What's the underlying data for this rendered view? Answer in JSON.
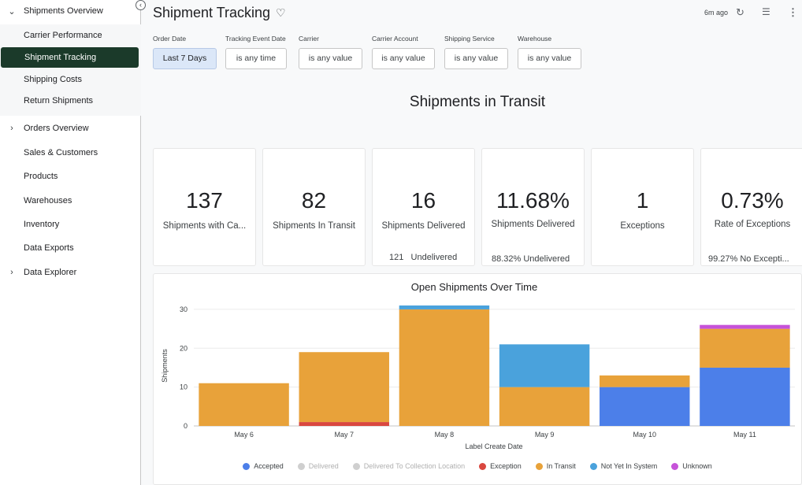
{
  "sidebar": {
    "sections": [
      {
        "label": "Shipments Overview",
        "expanded": true
      },
      {
        "label": "Orders Overview",
        "expanded": false
      },
      {
        "label": "Data Explorer",
        "expanded": false
      }
    ],
    "sub_items": [
      "Carrier Performance",
      "Shipment Tracking",
      "Shipping Costs",
      "Return Shipments"
    ],
    "items": [
      "Sales & Customers",
      "Products",
      "Warehouses",
      "Inventory",
      "Data Exports"
    ],
    "active": "Shipment Tracking"
  },
  "header": {
    "title": "Shipment Tracking",
    "last_updated": "6m ago"
  },
  "filters": [
    {
      "label": "Order Date",
      "value": "Last 7 Days",
      "selected": true
    },
    {
      "label": "Tracking Event Date",
      "value": "is any time",
      "selected": false
    },
    {
      "label": "Carrier",
      "value": "is any value",
      "selected": false
    },
    {
      "label": "Carrier Account",
      "value": "is any value",
      "selected": false
    },
    {
      "label": "Shipping Service",
      "value": "is any value",
      "selected": false
    },
    {
      "label": "Warehouse",
      "value": "is any value",
      "selected": false
    }
  ],
  "section_title": "Shipments in Transit",
  "kpis": [
    {
      "value": "137",
      "label": "Shipments with Ca...",
      "sub": ""
    },
    {
      "value": "82",
      "label": "Shipments In Transit",
      "sub": ""
    },
    {
      "value": "16",
      "label": "Shipments Delivered",
      "sub": "121   Undelivered"
    },
    {
      "value": "11.68%",
      "label": "Shipments Delivered",
      "sub": "88.32% Undelivered"
    },
    {
      "value": "1",
      "label": "Exceptions",
      "sub": ""
    },
    {
      "value": "0.73%",
      "label": "Rate of Exceptions",
      "sub": "99.27% No Excepti..."
    }
  ],
  "chart_data": {
    "type": "bar",
    "stacked": true,
    "title": "Open Shipments Over Time",
    "xlabel": "Label Create Date",
    "ylabel": "Shipments",
    "ylim": [
      0,
      31
    ],
    "yticks": [
      0,
      10,
      20,
      30
    ],
    "categories": [
      "May 6",
      "May 7",
      "May 8",
      "May 9",
      "May 10",
      "May 11"
    ],
    "series": [
      {
        "name": "Accepted",
        "color": "#4c7fe9",
        "values": [
          0,
          0,
          0,
          0,
          10,
          15
        ],
        "muted": false
      },
      {
        "name": "Delivered",
        "color": "#cfcfcf",
        "values": [
          0,
          0,
          0,
          0,
          0,
          0
        ],
        "muted": true
      },
      {
        "name": "Delivered To Collection Location",
        "color": "#cfcfcf",
        "values": [
          0,
          0,
          0,
          0,
          0,
          0
        ],
        "muted": true
      },
      {
        "name": "Exception",
        "color": "#d9473f",
        "values": [
          0,
          1,
          0,
          0,
          0,
          0
        ],
        "muted": false
      },
      {
        "name": "In Transit",
        "color": "#e8a23a",
        "values": [
          11,
          18,
          30,
          10,
          3,
          10
        ],
        "muted": false
      },
      {
        "name": "Not Yet In System",
        "color": "#4aa2dc",
        "values": [
          0,
          0,
          1,
          11,
          0,
          0
        ],
        "muted": false
      },
      {
        "name": "Unknown",
        "color": "#c653d9",
        "values": [
          0,
          0,
          0,
          0,
          0,
          1
        ],
        "muted": false
      }
    ],
    "legend_position": "bottom",
    "grid": true
  }
}
